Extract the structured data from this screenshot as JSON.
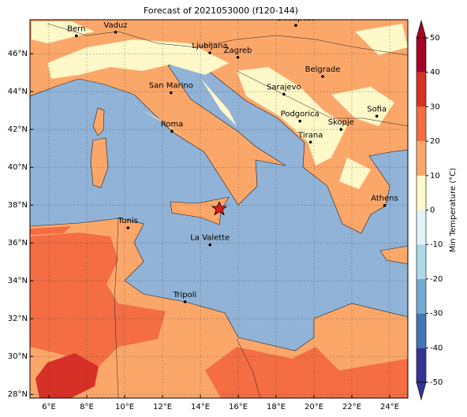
{
  "title": "Forecast of 2021053000 (f120-144)",
  "lon_ticks": [
    {
      "value": 6,
      "label": "6°E"
    },
    {
      "value": 8,
      "label": "8°E"
    },
    {
      "value": 10,
      "label": "10°E"
    },
    {
      "value": 12,
      "label": "12°E"
    },
    {
      "value": 14,
      "label": "14°E"
    },
    {
      "value": 16,
      "label": "16°E"
    },
    {
      "value": 18,
      "label": "18°E"
    },
    {
      "value": 20,
      "label": "20°E"
    },
    {
      "value": 22,
      "label": "22°E"
    },
    {
      "value": 24,
      "label": "24°E"
    }
  ],
  "lat_ticks": [
    {
      "value": 28,
      "label": "28°N"
    },
    {
      "value": 30,
      "label": "30°N"
    },
    {
      "value": 32,
      "label": "32°N"
    },
    {
      "value": 34,
      "label": "34°N"
    },
    {
      "value": 36,
      "label": "36°N"
    },
    {
      "value": 38,
      "label": "38°N"
    },
    {
      "value": 40,
      "label": "40°N"
    },
    {
      "value": 42,
      "label": "42°N"
    },
    {
      "value": 44,
      "label": "44°N"
    },
    {
      "value": 46,
      "label": "46°N"
    }
  ],
  "cities": [
    "Bern",
    "Vaduz",
    "Budapest",
    "Ljubljana",
    "Zagreb",
    "Belgrade",
    "San Marino",
    "Sarajevo",
    "Sofia",
    "Podgorica",
    "Skopje",
    "Roma",
    "Tirana",
    "Athens",
    "Tunis",
    "La Valette",
    "Tripoli"
  ],
  "colorbar": {
    "label": "Min Temperature (°C)",
    "ticks": [
      -50,
      -40,
      -30,
      -20,
      -10,
      0,
      10,
      20,
      30,
      40,
      50
    ],
    "colors": [
      "#313695",
      "#4575b4",
      "#74add1",
      "#abd9e9",
      "#e0f3f8",
      "#fff8c8",
      "#fca76a",
      "#f46d43",
      "#d73027",
      "#a50026"
    ]
  }
}
